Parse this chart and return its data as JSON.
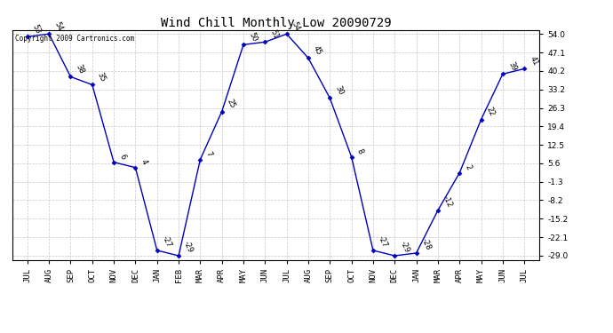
{
  "title": "Wind Chill Monthly Low 20090729",
  "copyright": "Copyright 2009 Cartronics.com",
  "months": [
    "JUL",
    "AUG",
    "SEP",
    "OCT",
    "NOV",
    "DEC",
    "JAN",
    "FEB",
    "MAR",
    "APR",
    "MAY",
    "JUN",
    "JUL",
    "AUG",
    "SEP",
    "OCT",
    "NOV",
    "DEC",
    "JAN",
    "MAR",
    "APR",
    "MAY",
    "JUN",
    "JUL"
  ],
  "values": [
    53,
    54,
    38,
    35,
    6,
    4,
    -27,
    -29,
    7,
    25,
    50,
    51,
    54,
    45,
    30,
    8,
    -27,
    -29,
    -28,
    -12,
    2,
    22,
    39,
    41
  ],
  "ylim_min": -29.0,
  "ylim_max": 54.0,
  "yticks": [
    54.0,
    47.1,
    40.2,
    33.2,
    26.3,
    19.4,
    12.5,
    5.6,
    -1.3,
    -8.2,
    -15.2,
    -22.1,
    -29.0
  ],
  "ytick_labels": [
    "54.0",
    "47.1",
    "40.2",
    "33.2",
    "26.3",
    "19.4",
    "12.5",
    "5.6",
    "-1.3",
    "-8.2",
    "-15.2",
    "-22.1",
    "-29.0"
  ],
  "line_color": "#0000bb",
  "bg_color": "#ffffff",
  "grid_color": "#bbbbbb",
  "title_fontsize": 10,
  "label_fontsize": 6,
  "tick_fontsize": 6.5,
  "copyright_fontsize": 5.5
}
